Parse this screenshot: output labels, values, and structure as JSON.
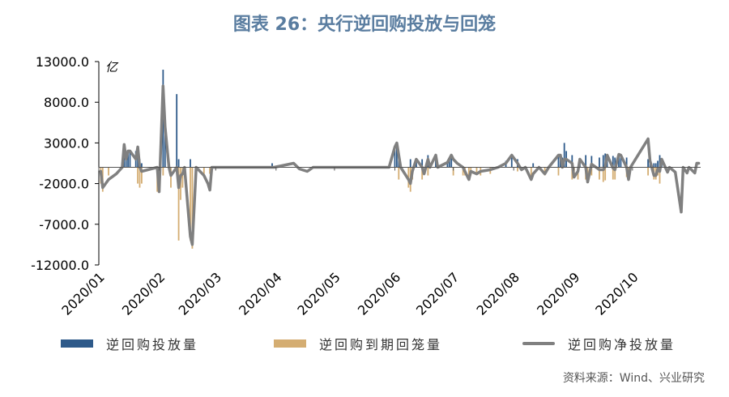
{
  "title": "图表 26：央行逆回购投放与回笼",
  "source": "资料来源：Wind、兴业研究",
  "colors": {
    "injection": "#2e5a8a",
    "maturity": "#d4ad72",
    "net": "#808080",
    "title": "#5a7da0"
  },
  "chart_data": {
    "type": "bar",
    "title": "图表 26：央行逆回购投放与回笼",
    "ylabel": "亿",
    "ylim": [
      -12000,
      13000
    ],
    "yticks": [
      13000,
      8000,
      3000,
      -2000,
      -7000,
      -12000
    ],
    "ytick_labels": [
      "13000.0",
      "8000.0",
      "3000.0",
      "-2000.0",
      "-7000.0",
      "-12000.0"
    ],
    "xlim": [
      "2020-01-01",
      "2020-11-05"
    ],
    "xtick_labels": [
      "2020/01",
      "2020/02",
      "2020/03",
      "2020/04",
      "2020/05",
      "2020/06",
      "2020/07",
      "2020/08",
      "2020/09",
      "2020/10"
    ],
    "xtick_dates": [
      "2020-01-01",
      "2020-02-01",
      "2020-03-01",
      "2020-04-01",
      "2020-05-01",
      "2020-06-01",
      "2020-07-01",
      "2020-08-01",
      "2020-09-01",
      "2020-10-01"
    ],
    "legend_position": "bottom",
    "series": [
      {
        "name": "逆回购投放量",
        "type": "bar",
        "points": [
          [
            "2020-01-14",
            2800
          ],
          [
            "2020-01-15",
            1000
          ],
          [
            "2020-01-16",
            2000
          ],
          [
            "2020-01-17",
            2000
          ],
          [
            "2020-01-20",
            2000
          ],
          [
            "2020-01-21",
            2500
          ],
          [
            "2020-01-22",
            1000
          ],
          [
            "2020-01-23",
            500
          ],
          [
            "2020-02-03",
            12000
          ],
          [
            "2020-02-04",
            5000
          ],
          [
            "2020-02-10",
            9000
          ],
          [
            "2020-02-11",
            1000
          ],
          [
            "2020-02-17",
            1000
          ],
          [
            "2020-03-30",
            500
          ],
          [
            "2020-06-01",
            2500
          ],
          [
            "2020-06-02",
            3000
          ],
          [
            "2020-06-03",
            1500
          ],
          [
            "2020-06-09",
            1000
          ],
          [
            "2020-06-12",
            1000
          ],
          [
            "2020-06-15",
            1000
          ],
          [
            "2020-06-18",
            1500
          ],
          [
            "2020-06-22",
            1500
          ],
          [
            "2020-06-28",
            700
          ],
          [
            "2020-06-29",
            1000
          ],
          [
            "2020-06-30",
            1500
          ],
          [
            "2020-07-28",
            800
          ],
          [
            "2020-07-31",
            1500
          ],
          [
            "2020-08-03",
            1000
          ],
          [
            "2020-08-11",
            500
          ],
          [
            "2020-08-24",
            1500
          ],
          [
            "2020-08-25",
            1500
          ],
          [
            "2020-08-26",
            1200
          ],
          [
            "2020-08-27",
            3000
          ],
          [
            "2020-08-28",
            2000
          ],
          [
            "2020-08-31",
            1500
          ],
          [
            "2020-09-04",
            1000
          ],
          [
            "2020-09-07",
            1500
          ],
          [
            "2020-09-10",
            1400
          ],
          [
            "2020-09-14",
            1200
          ],
          [
            "2020-09-16",
            1500
          ],
          [
            "2020-09-17",
            1700
          ],
          [
            "2020-09-18",
            1500
          ],
          [
            "2020-09-21",
            1400
          ],
          [
            "2020-09-22",
            1200
          ],
          [
            "2020-09-24",
            1600
          ],
          [
            "2020-09-25",
            1500
          ],
          [
            "2020-09-28",
            1200
          ],
          [
            "2020-10-09",
            1000
          ],
          [
            "2020-10-10",
            800
          ],
          [
            "2020-10-12",
            500
          ],
          [
            "2020-10-13",
            500
          ],
          [
            "2020-10-14",
            800
          ],
          [
            "2020-10-15",
            1500
          ],
          [
            "2020-10-16",
            1000
          ]
        ]
      },
      {
        "name": "逆回购到期回笼量",
        "type": "bar",
        "points": [
          [
            "2020-01-02",
            -2000
          ],
          [
            "2020-01-03",
            -3000
          ],
          [
            "2020-01-06",
            -1000
          ],
          [
            "2020-01-21",
            -2000
          ],
          [
            "2020-01-22",
            -2500
          ],
          [
            "2020-01-23",
            -2000
          ],
          [
            "2020-01-31",
            -3000
          ],
          [
            "2020-02-03",
            -1000
          ],
          [
            "2020-02-07",
            -2500
          ],
          [
            "2020-02-11",
            -9000
          ],
          [
            "2020-02-12",
            -4000
          ],
          [
            "2020-02-13",
            -2500
          ],
          [
            "2020-02-17",
            -9000
          ],
          [
            "2020-02-18",
            -10000
          ],
          [
            "2020-02-24",
            -1000
          ],
          [
            "2020-02-27",
            -800
          ],
          [
            "2020-06-03",
            -1500
          ],
          [
            "2020-06-08",
            -2500
          ],
          [
            "2020-06-09",
            -3000
          ],
          [
            "2020-06-10",
            -1500
          ],
          [
            "2020-06-15",
            -1500
          ],
          [
            "2020-06-18",
            -1000
          ],
          [
            "2020-07-01",
            -1000
          ],
          [
            "2020-07-06",
            -1000
          ],
          [
            "2020-07-07",
            -1000
          ],
          [
            "2020-07-09",
            -1500
          ],
          [
            "2020-07-10",
            -1000
          ],
          [
            "2020-07-13",
            -800
          ],
          [
            "2020-07-15",
            -1000
          ],
          [
            "2020-07-20",
            -800
          ],
          [
            "2020-08-03",
            -500
          ],
          [
            "2020-08-10",
            -1500
          ],
          [
            "2020-08-17",
            -1000
          ],
          [
            "2020-08-24",
            -1000
          ],
          [
            "2020-08-31",
            -1500
          ],
          [
            "2020-09-01",
            -1200
          ],
          [
            "2020-09-03",
            -1500
          ],
          [
            "2020-09-07",
            -1500
          ],
          [
            "2020-09-08",
            -1800
          ],
          [
            "2020-09-10",
            -1000
          ],
          [
            "2020-09-14",
            -1500
          ],
          [
            "2020-09-16",
            -1800
          ],
          [
            "2020-09-17",
            -1600
          ],
          [
            "2020-09-21",
            -1500
          ],
          [
            "2020-09-22",
            -1500
          ],
          [
            "2020-09-28",
            -1200
          ],
          [
            "2020-09-29",
            -1500
          ],
          [
            "2020-10-09",
            -1000
          ],
          [
            "2020-10-12",
            -1500
          ],
          [
            "2020-10-13",
            -1500
          ],
          [
            "2020-10-14",
            -1000
          ],
          [
            "2020-10-15",
            -2000
          ]
        ]
      },
      {
        "name": "逆回购净投放量",
        "type": "line",
        "points": [
          [
            "2020-01-02",
            -500
          ],
          [
            "2020-01-03",
            -2500
          ],
          [
            "2020-01-06",
            -1500
          ],
          [
            "2020-01-10",
            -800
          ],
          [
            "2020-01-13",
            0
          ],
          [
            "2020-01-14",
            2800
          ],
          [
            "2020-01-15",
            1000
          ],
          [
            "2020-01-16",
            2000
          ],
          [
            "2020-01-17",
            2000
          ],
          [
            "2020-01-20",
            1000
          ],
          [
            "2020-01-21",
            2500
          ],
          [
            "2020-01-22",
            0
          ],
          [
            "2020-01-23",
            -500
          ],
          [
            "2020-01-31",
            0
          ],
          [
            "2020-02-01",
            -3000
          ],
          [
            "2020-02-03",
            10000
          ],
          [
            "2020-02-04",
            5000
          ],
          [
            "2020-02-06",
            0
          ],
          [
            "2020-02-07",
            -1000
          ],
          [
            "2020-02-10",
            0
          ],
          [
            "2020-02-11",
            -2500
          ],
          [
            "2020-02-12",
            -1000
          ],
          [
            "2020-02-13",
            -800
          ],
          [
            "2020-02-14",
            0
          ],
          [
            "2020-02-17",
            -8500
          ],
          [
            "2020-02-18",
            -9500
          ],
          [
            "2020-02-20",
            0
          ],
          [
            "2020-02-24",
            -1000
          ],
          [
            "2020-02-26",
            -2000
          ],
          [
            "2020-02-27",
            -2800
          ],
          [
            "2020-02-28",
            0
          ],
          [
            "2020-03-31",
            0
          ],
          [
            "2020-04-10",
            500
          ],
          [
            "2020-04-13",
            -200
          ],
          [
            "2020-04-17",
            -500
          ],
          [
            "2020-04-20",
            0
          ],
          [
            "2020-05-29",
            0
          ],
          [
            "2020-06-01",
            2500
          ],
          [
            "2020-06-02",
            3000
          ],
          [
            "2020-06-03",
            1500
          ],
          [
            "2020-06-04",
            0
          ],
          [
            "2020-06-08",
            -1500
          ],
          [
            "2020-06-09",
            -2000
          ],
          [
            "2020-06-10",
            -500
          ],
          [
            "2020-06-12",
            1000
          ],
          [
            "2020-06-15",
            0
          ],
          [
            "2020-06-16",
            -800
          ],
          [
            "2020-06-18",
            1000
          ],
          [
            "2020-06-19",
            0
          ],
          [
            "2020-06-22",
            1500
          ],
          [
            "2020-06-23",
            0
          ],
          [
            "2020-06-28",
            600
          ],
          [
            "2020-06-30",
            1500
          ],
          [
            "2020-07-01",
            1000
          ],
          [
            "2020-07-03",
            500
          ],
          [
            "2020-07-06",
            0
          ],
          [
            "2020-07-09",
            -1500
          ],
          [
            "2020-07-10",
            -500
          ],
          [
            "2020-07-13",
            -800
          ],
          [
            "2020-07-15",
            -500
          ],
          [
            "2020-07-20",
            -300
          ],
          [
            "2020-07-24",
            0
          ],
          [
            "2020-07-28",
            500
          ],
          [
            "2020-07-31",
            1500
          ],
          [
            "2020-08-03",
            500
          ],
          [
            "2020-08-05",
            -300
          ],
          [
            "2020-08-07",
            0
          ],
          [
            "2020-08-10",
            -1500
          ],
          [
            "2020-08-11",
            -800
          ],
          [
            "2020-08-14",
            0
          ],
          [
            "2020-08-17",
            -800
          ],
          [
            "2020-08-19",
            0
          ],
          [
            "2020-08-24",
            1500
          ],
          [
            "2020-08-25",
            1500
          ],
          [
            "2020-08-26",
            0
          ],
          [
            "2020-08-27",
            1000
          ],
          [
            "2020-08-28",
            1000
          ],
          [
            "2020-08-31",
            500
          ],
          [
            "2020-09-01",
            -1200
          ],
          [
            "2020-09-03",
            -500
          ],
          [
            "2020-09-04",
            1000
          ],
          [
            "2020-09-07",
            0
          ],
          [
            "2020-09-08",
            -1800
          ],
          [
            "2020-09-10",
            400
          ],
          [
            "2020-09-14",
            -300
          ],
          [
            "2020-09-16",
            -300
          ],
          [
            "2020-09-17",
            100
          ],
          [
            "2020-09-18",
            1500
          ],
          [
            "2020-09-21",
            -100
          ],
          [
            "2020-09-22",
            -300
          ],
          [
            "2020-09-24",
            1600
          ],
          [
            "2020-09-25",
            1500
          ],
          [
            "2020-09-28",
            0
          ],
          [
            "2020-09-29",
            -1500
          ],
          [
            "2020-09-30",
            0
          ],
          [
            "2020-10-09",
            3500
          ],
          [
            "2020-10-10",
            800
          ],
          [
            "2020-10-12",
            -1000
          ],
          [
            "2020-10-13",
            -1000
          ],
          [
            "2020-10-14",
            -200
          ],
          [
            "2020-10-15",
            -500
          ],
          [
            "2020-10-16",
            1000
          ],
          [
            "2020-10-19",
            -600
          ],
          [
            "2020-10-20",
            0
          ],
          [
            "2020-10-23",
            -600
          ],
          [
            "2020-10-26",
            -5500
          ],
          [
            "2020-10-27",
            0
          ],
          [
            "2020-10-29",
            -700
          ],
          [
            "2020-10-30",
            0
          ],
          [
            "2020-11-02",
            -700
          ],
          [
            "2020-11-03",
            500
          ],
          [
            "2020-11-04",
            500
          ]
        ]
      }
    ]
  }
}
